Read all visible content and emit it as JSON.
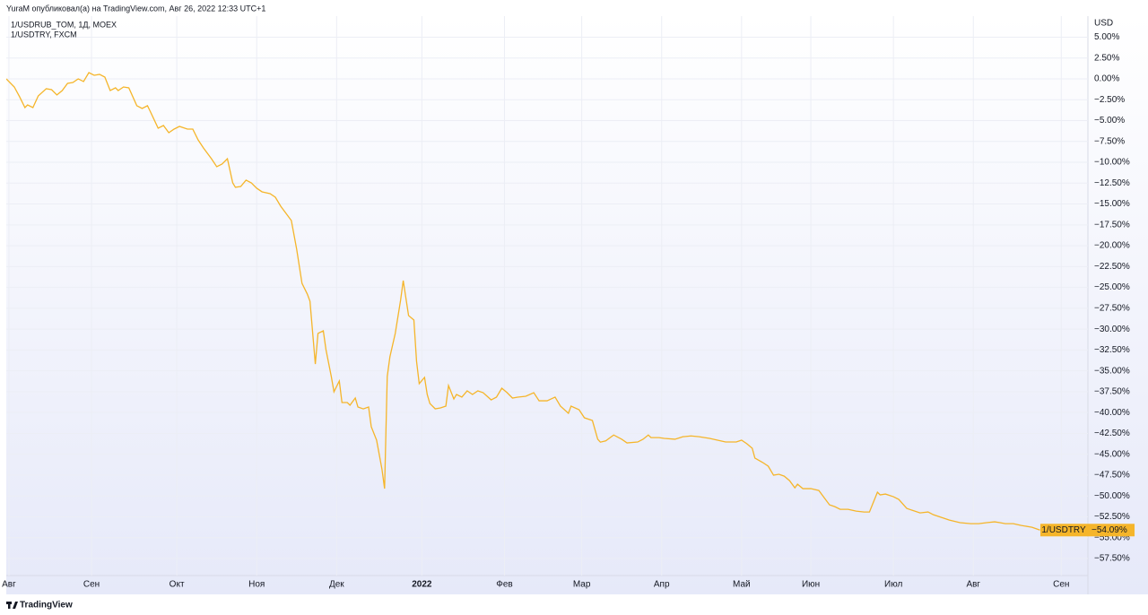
{
  "header": {
    "text": "YuraM опубликовал(а) на TradingView.com, Авг 26, 2022 12:33 UTC+1"
  },
  "footer": {
    "brand": "TradingView"
  },
  "chart_data": {
    "type": "line",
    "legend_lines": [
      "1/USDRUB_TOM, 1Д, MOEX",
      "1/USDTRY, FXCM"
    ],
    "y_axis_unit": "USD",
    "grid": true,
    "xlim": [
      -32,
      374
    ],
    "ylim": [
      -59.54,
      7.52
    ],
    "xticks": [
      {
        "value": -31,
        "label": "Авг"
      },
      {
        "value": 0,
        "label": "Сен"
      },
      {
        "value": 32,
        "label": "Окт"
      },
      {
        "value": 62,
        "label": "Ноя"
      },
      {
        "value": 92,
        "label": "Дек"
      },
      {
        "value": 124,
        "label": "2022",
        "emphasis": true
      },
      {
        "value": 155,
        "label": "Фев"
      },
      {
        "value": 184,
        "label": "Мар"
      },
      {
        "value": 214,
        "label": "Апр"
      },
      {
        "value": 244,
        "label": "Май"
      },
      {
        "value": 270,
        "label": "Июн"
      },
      {
        "value": 301,
        "label": "Июл"
      },
      {
        "value": 331,
        "label": "Авг"
      },
      {
        "value": 364,
        "label": "Сен"
      }
    ],
    "yticks": [
      {
        "value": 5,
        "label": "5.00%"
      },
      {
        "value": 2.5,
        "label": "2.50%"
      },
      {
        "value": 0,
        "label": "0.00%"
      },
      {
        "value": -2.5,
        "label": "−2.50%"
      },
      {
        "value": -5,
        "label": "−5.00%"
      },
      {
        "value": -7.5,
        "label": "−7.50%"
      },
      {
        "value": -10,
        "label": "−10.00%"
      },
      {
        "value": -12.5,
        "label": "−12.50%"
      },
      {
        "value": -15,
        "label": "−15.00%"
      },
      {
        "value": -17.5,
        "label": "−17.50%"
      },
      {
        "value": -20,
        "label": "−20.00%"
      },
      {
        "value": -22.5,
        "label": "−22.50%"
      },
      {
        "value": -25,
        "label": "−25.00%"
      },
      {
        "value": -27.5,
        "label": "−27.50%"
      },
      {
        "value": -30,
        "label": "−30.00%"
      },
      {
        "value": -32.5,
        "label": "−32.50%"
      },
      {
        "value": -35,
        "label": "−35.00%"
      },
      {
        "value": -37.5,
        "label": "−37.50%"
      },
      {
        "value": -40,
        "label": "−40.00%"
      },
      {
        "value": -42.5,
        "label": "−42.50%"
      },
      {
        "value": -45,
        "label": "−45.00%"
      },
      {
        "value": -47.5,
        "label": "−47.50%"
      },
      {
        "value": -50,
        "label": "−50.00%"
      },
      {
        "value": -52.5,
        "label": "−52.50%"
      },
      {
        "value": -55,
        "label": "−55.00%"
      },
      {
        "value": -57.5,
        "label": "−57.50%"
      }
    ],
    "x": [
      -32,
      -29,
      -27,
      -25,
      -24,
      -22,
      -20,
      -17,
      -15,
      -13,
      -11,
      -9,
      -7,
      -5,
      -3,
      -1,
      1,
      3,
      5,
      7,
      9,
      10,
      12,
      14,
      17,
      19,
      21,
      22,
      25,
      27,
      29,
      31,
      33,
      36,
      38,
      40,
      42,
      45,
      47,
      49,
      51,
      53,
      54,
      56,
      58,
      60,
      62,
      64,
      67,
      69,
      71,
      73,
      75,
      77,
      79,
      81,
      82,
      84,
      85,
      87,
      88,
      90,
      91,
      93,
      94,
      96,
      97,
      99,
      100,
      102,
      104,
      105,
      107,
      109,
      110,
      111,
      112,
      114,
      116,
      117,
      119,
      121,
      122,
      123,
      125,
      126,
      127,
      129,
      131,
      133,
      134,
      136,
      137,
      139,
      141,
      143,
      145,
      147,
      150,
      152,
      154,
      156,
      158,
      160,
      163,
      166,
      168,
      171,
      174,
      176,
      179,
      180,
      183,
      185,
      188,
      190,
      191,
      193,
      196,
      199,
      201,
      205,
      207,
      209,
      210,
      213,
      215,
      219,
      222,
      225,
      228,
      232,
      235,
      238,
      242,
      244,
      246,
      248,
      249,
      252,
      254,
      256,
      258,
      260,
      262,
      264,
      265,
      267,
      270,
      273,
      275,
      277,
      279,
      281,
      284,
      287,
      290,
      292,
      295,
      296,
      298,
      301,
      303,
      306,
      308,
      311,
      314,
      316,
      319,
      322,
      326,
      330,
      333,
      336,
      339,
      341,
      343,
      346,
      349,
      353,
      356
    ],
    "series": [
      {
        "name": "1/USDTRY",
        "color": "#f5b52a",
        "values": [
          0,
          -0.97,
          -2.15,
          -3.44,
          -3.12,
          -3.44,
          -2.04,
          -1.18,
          -1.29,
          -1.93,
          -1.4,
          -0.54,
          -0.43,
          0,
          -0.32,
          0.75,
          0.43,
          0.54,
          0.21,
          -1.4,
          -1.07,
          -1.4,
          -0.97,
          -1.07,
          -3.22,
          -3.55,
          -3.22,
          -3.87,
          -5.91,
          -5.59,
          -6.45,
          -6.02,
          -5.7,
          -6.02,
          -6.02,
          -7.31,
          -8.28,
          -9.57,
          -10.53,
          -10.21,
          -9.57,
          -12.47,
          -13.0,
          -12.9,
          -12.14,
          -12.47,
          -13.11,
          -13.54,
          -13.76,
          -14.19,
          -15.26,
          -16.12,
          -16.98,
          -20.42,
          -24.51,
          -25.8,
          -26.66,
          -34.18,
          -30.52,
          -30.2,
          -32.46,
          -35.68,
          -37.51,
          -36.22,
          -38.8,
          -38.8,
          -39.12,
          -38.26,
          -39.34,
          -39.56,
          -39.34,
          -41.7,
          -43.31,
          -46.76,
          -49.12,
          -35.68,
          -33.32,
          -30.52,
          -26.55,
          -24.18,
          -28.37,
          -28.91,
          -33.86,
          -36.54,
          -35.79,
          -37.83,
          -38.91,
          -39.55,
          -39.44,
          -39.23,
          -36.76,
          -38.37,
          -37.83,
          -38.15,
          -37.4,
          -37.83,
          -37.4,
          -37.62,
          -38.48,
          -38.15,
          -37.08,
          -37.62,
          -38.26,
          -38.15,
          -38.05,
          -37.62,
          -38.59,
          -38.59,
          -38.15,
          -39.23,
          -40.09,
          -39.23,
          -39.66,
          -40.63,
          -40.95,
          -43.2,
          -43.55,
          -43.4,
          -42.69,
          -43.2,
          -43.64,
          -43.53,
          -43.2,
          -42.69,
          -43.0,
          -43.0,
          -43.1,
          -43.2,
          -42.9,
          -42.8,
          -42.9,
          -43.1,
          -43.31,
          -43.53,
          -43.53,
          -43.31,
          -43.74,
          -44.28,
          -45.46,
          -46.0,
          -46.43,
          -47.51,
          -47.4,
          -47.62,
          -48.16,
          -49.02,
          -48.59,
          -49.12,
          -49.12,
          -49.34,
          -50.2,
          -51.06,
          -51.28,
          -51.6,
          -51.6,
          -51.82,
          -51.92,
          -51.92,
          -49.55,
          -49.87,
          -49.77,
          -50.09,
          -50.41,
          -51.49,
          -51.71,
          -52.03,
          -51.92,
          -52.25,
          -52.57,
          -52.89,
          -53.2,
          -53.32,
          -53.32,
          -53.2,
          -53.1,
          -53.2,
          -53.32,
          -53.32,
          -53.53,
          -53.75,
          -54.09
        ],
        "last_label": {
          "value": -54.09,
          "label": "−54.09%"
        }
      }
    ]
  }
}
